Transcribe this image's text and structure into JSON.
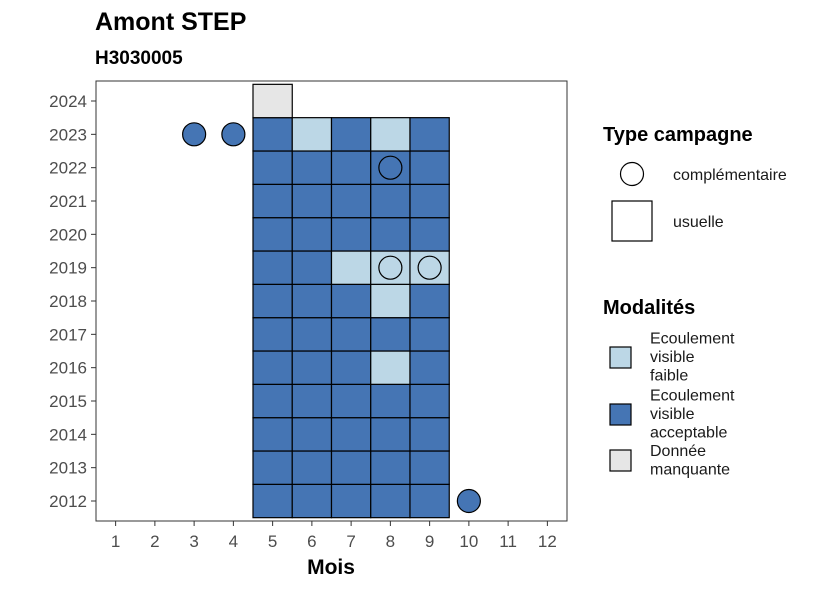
{
  "chart_data": {
    "type": "heatmap",
    "title": "Amont STEP",
    "subtitle": "H3030005",
    "xlabel": "Mois",
    "ylabel": "",
    "x_ticks": [
      1,
      2,
      3,
      4,
      5,
      6,
      7,
      8,
      9,
      10,
      11,
      12
    ],
    "y_ticks": [
      2012,
      2013,
      2014,
      2015,
      2016,
      2017,
      2018,
      2019,
      2020,
      2021,
      2022,
      2023,
      2024
    ],
    "xlim": [
      0.5,
      12.5
    ],
    "ylim": [
      2011.4,
      2024.6
    ],
    "grid": false,
    "modalites": {
      "faible": {
        "label": "Ecoulement visible faible",
        "color": "#bcd7e6"
      },
      "acceptable": {
        "label": "Ecoulement visible acceptable",
        "color": "#4575b4"
      },
      "manquante": {
        "label": "Donnée manquante",
        "color": "#e6e6e6"
      }
    },
    "cells": [
      {
        "year": 2012,
        "month": 5,
        "modalite": "acceptable"
      },
      {
        "year": 2012,
        "month": 6,
        "modalite": "acceptable"
      },
      {
        "year": 2012,
        "month": 7,
        "modalite": "acceptable"
      },
      {
        "year": 2012,
        "month": 8,
        "modalite": "acceptable"
      },
      {
        "year": 2012,
        "month": 9,
        "modalite": "acceptable"
      },
      {
        "year": 2013,
        "month": 5,
        "modalite": "acceptable"
      },
      {
        "year": 2013,
        "month": 6,
        "modalite": "acceptable"
      },
      {
        "year": 2013,
        "month": 7,
        "modalite": "acceptable"
      },
      {
        "year": 2013,
        "month": 8,
        "modalite": "acceptable"
      },
      {
        "year": 2013,
        "month": 9,
        "modalite": "acceptable"
      },
      {
        "year": 2014,
        "month": 5,
        "modalite": "acceptable"
      },
      {
        "year": 2014,
        "month": 6,
        "modalite": "acceptable"
      },
      {
        "year": 2014,
        "month": 7,
        "modalite": "acceptable"
      },
      {
        "year": 2014,
        "month": 8,
        "modalite": "acceptable"
      },
      {
        "year": 2014,
        "month": 9,
        "modalite": "acceptable"
      },
      {
        "year": 2015,
        "month": 5,
        "modalite": "acceptable"
      },
      {
        "year": 2015,
        "month": 6,
        "modalite": "acceptable"
      },
      {
        "year": 2015,
        "month": 7,
        "modalite": "acceptable"
      },
      {
        "year": 2015,
        "month": 8,
        "modalite": "acceptable"
      },
      {
        "year": 2015,
        "month": 9,
        "modalite": "acceptable"
      },
      {
        "year": 2016,
        "month": 5,
        "modalite": "acceptable"
      },
      {
        "year": 2016,
        "month": 6,
        "modalite": "acceptable"
      },
      {
        "year": 2016,
        "month": 7,
        "modalite": "acceptable"
      },
      {
        "year": 2016,
        "month": 8,
        "modalite": "faible"
      },
      {
        "year": 2016,
        "month": 9,
        "modalite": "acceptable"
      },
      {
        "year": 2017,
        "month": 5,
        "modalite": "acceptable"
      },
      {
        "year": 2017,
        "month": 6,
        "modalite": "acceptable"
      },
      {
        "year": 2017,
        "month": 7,
        "modalite": "acceptable"
      },
      {
        "year": 2017,
        "month": 8,
        "modalite": "acceptable"
      },
      {
        "year": 2017,
        "month": 9,
        "modalite": "acceptable"
      },
      {
        "year": 2018,
        "month": 5,
        "modalite": "acceptable"
      },
      {
        "year": 2018,
        "month": 6,
        "modalite": "acceptable"
      },
      {
        "year": 2018,
        "month": 7,
        "modalite": "acceptable"
      },
      {
        "year": 2018,
        "month": 8,
        "modalite": "faible"
      },
      {
        "year": 2018,
        "month": 9,
        "modalite": "acceptable"
      },
      {
        "year": 2019,
        "month": 5,
        "modalite": "acceptable"
      },
      {
        "year": 2019,
        "month": 6,
        "modalite": "acceptable"
      },
      {
        "year": 2019,
        "month": 7,
        "modalite": "faible"
      },
      {
        "year": 2019,
        "month": 8,
        "modalite": "faible"
      },
      {
        "year": 2019,
        "month": 9,
        "modalite": "faible"
      },
      {
        "year": 2020,
        "month": 5,
        "modalite": "acceptable"
      },
      {
        "year": 2020,
        "month": 6,
        "modalite": "acceptable"
      },
      {
        "year": 2020,
        "month": 7,
        "modalite": "acceptable"
      },
      {
        "year": 2020,
        "month": 8,
        "modalite": "acceptable"
      },
      {
        "year": 2020,
        "month": 9,
        "modalite": "acceptable"
      },
      {
        "year": 2021,
        "month": 5,
        "modalite": "acceptable"
      },
      {
        "year": 2021,
        "month": 6,
        "modalite": "acceptable"
      },
      {
        "year": 2021,
        "month": 7,
        "modalite": "acceptable"
      },
      {
        "year": 2021,
        "month": 8,
        "modalite": "acceptable"
      },
      {
        "year": 2021,
        "month": 9,
        "modalite": "acceptable"
      },
      {
        "year": 2022,
        "month": 5,
        "modalite": "acceptable"
      },
      {
        "year": 2022,
        "month": 6,
        "modalite": "acceptable"
      },
      {
        "year": 2022,
        "month": 7,
        "modalite": "acceptable"
      },
      {
        "year": 2022,
        "month": 8,
        "modalite": "acceptable"
      },
      {
        "year": 2022,
        "month": 9,
        "modalite": "acceptable"
      },
      {
        "year": 2023,
        "month": 5,
        "modalite": "acceptable"
      },
      {
        "year": 2023,
        "month": 6,
        "modalite": "faible"
      },
      {
        "year": 2023,
        "month": 7,
        "modalite": "acceptable"
      },
      {
        "year": 2023,
        "month": 8,
        "modalite": "faible"
      },
      {
        "year": 2023,
        "month": 9,
        "modalite": "acceptable"
      },
      {
        "year": 2024,
        "month": 5,
        "modalite": "manquante"
      }
    ],
    "points": [
      {
        "year": 2023,
        "month": 3,
        "modalite": "acceptable"
      },
      {
        "year": 2023,
        "month": 4,
        "modalite": "acceptable"
      },
      {
        "year": 2022,
        "month": 8,
        "modalite": "acceptable"
      },
      {
        "year": 2019,
        "month": 8,
        "modalite": "faible"
      },
      {
        "year": 2019,
        "month": 9,
        "modalite": "faible"
      },
      {
        "year": 2012,
        "month": 10,
        "modalite": "acceptable"
      }
    ],
    "legend_type": {
      "title": "Type campagne",
      "items": [
        {
          "shape": "circle",
          "label": "complémentaire"
        },
        {
          "shape": "square",
          "label": "usuelle"
        }
      ]
    },
    "legend_modalites": {
      "title": "Modalités",
      "items": [
        {
          "key": "faible",
          "lines": [
            "Ecoulement",
            "visible",
            "faible"
          ]
        },
        {
          "key": "acceptable",
          "lines": [
            "Ecoulement",
            "visible",
            "acceptable"
          ]
        },
        {
          "key": "manquante",
          "lines": [
            "Donnée",
            "manquante"
          ]
        }
      ]
    },
    "legend_position": "right"
  }
}
